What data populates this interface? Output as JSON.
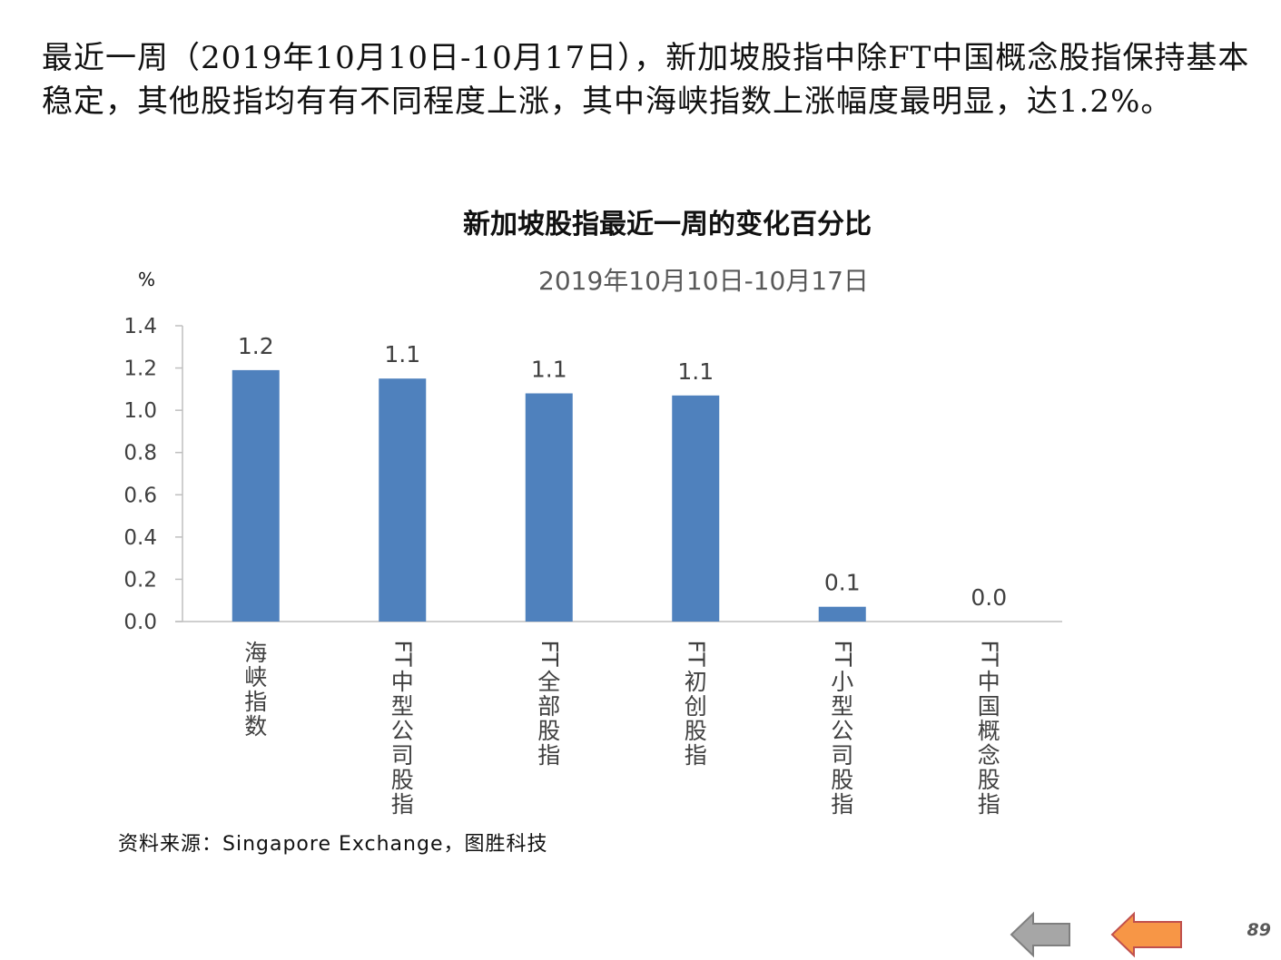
{
  "intro_text": "最近一周（2019年10月10日-10月17日），新加坡股指中除FT中国概念股指保持基本稳定，其他股指均有有不同程度上涨，其中海峡指数上涨幅度最明显，达1.2%。",
  "chart_data": {
    "type": "bar",
    "title": "新加坡股指最近一周的变化百分比",
    "subtitle": "2019年10月10日-10月17日",
    "ylabel": "%",
    "xlabel": "",
    "categories": [
      "海峡指数",
      "FT中型公司股指",
      "FT全部股指",
      "FT初创股指",
      "FT小型公司股指",
      "FT中国概念股指"
    ],
    "values": [
      1.19,
      1.15,
      1.08,
      1.07,
      0.07,
      0.0
    ],
    "data_labels": [
      "1.2",
      "1.1",
      "1.1",
      "1.1",
      "0.1",
      "0.0"
    ],
    "ylim": [
      0,
      1.4
    ],
    "yticks": [
      "0.0",
      "0.2",
      "0.4",
      "0.6",
      "0.8",
      "1.0",
      "1.2",
      "1.4"
    ],
    "bar_color": "#4F81BD",
    "grid": false,
    "legend": "none"
  },
  "source_note": "资料来源：Singapore Exchange，图胜科技",
  "nav": {
    "prev_icon": "left-arrow-gray-icon",
    "next_icon": "left-arrow-orange-icon"
  },
  "page_number": "89"
}
